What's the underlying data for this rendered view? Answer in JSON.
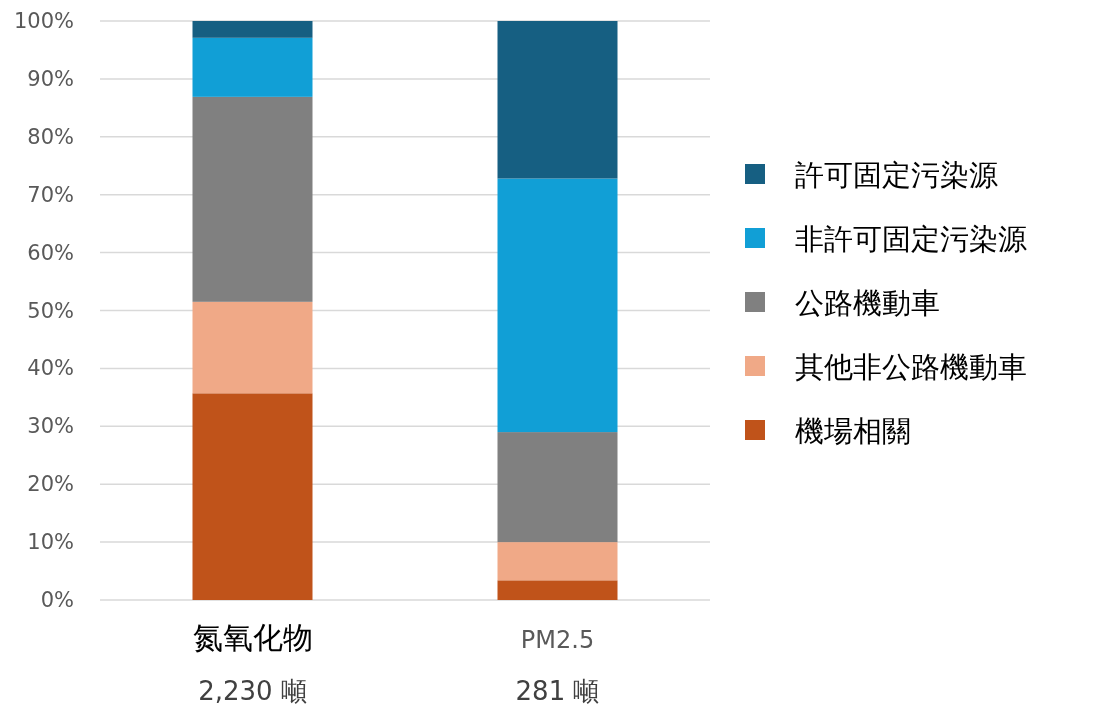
{
  "chart_data": {
    "type": "bar",
    "stacked": true,
    "categories": [
      "氮氧化物",
      "PM2.5"
    ],
    "annotations": [
      "2,230 噸",
      "281 噸"
    ],
    "series": [
      {
        "name": "機場相關",
        "color": "#c0531a",
        "values": [
          35.7,
          3.4
        ]
      },
      {
        "name": "其他非公路機動車",
        "color": "#f0a987",
        "values": [
          15.8,
          6.6
        ]
      },
      {
        "name": "公路機動車",
        "color": "#808080",
        "values": [
          35.4,
          19.0
        ]
      },
      {
        "name": "非許可固定污染源",
        "color": "#119fd6",
        "values": [
          10.2,
          43.8
        ]
      },
      {
        "name": "許可固定污染源",
        "color": "#165f82",
        "values": [
          2.9,
          27.2
        ]
      }
    ],
    "ylim": [
      0,
      100
    ],
    "yticks": [
      {
        "value": 0,
        "label": "0%"
      },
      {
        "value": 10,
        "label": "10%"
      },
      {
        "value": 20,
        "label": "20%"
      },
      {
        "value": 30,
        "label": "30%"
      },
      {
        "value": 40,
        "label": "40%"
      },
      {
        "value": 50,
        "label": "50%"
      },
      {
        "value": 60,
        "label": "60%"
      },
      {
        "value": 70,
        "label": "70%"
      },
      {
        "value": 80,
        "label": "80%"
      },
      {
        "value": 90,
        "label": "90%"
      },
      {
        "value": 100,
        "label": "100%"
      }
    ],
    "grid": "y",
    "legend": "right"
  }
}
